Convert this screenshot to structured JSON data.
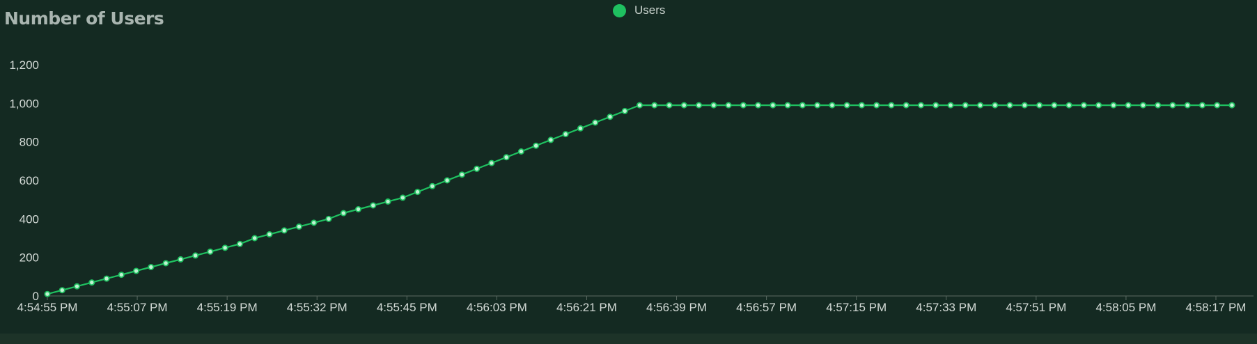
{
  "chart_data": {
    "type": "line",
    "title": "Number of Users",
    "xlabel": "",
    "ylabel": "",
    "legend": {
      "position": "top-center",
      "entries": [
        "Users"
      ]
    },
    "grid": false,
    "ylim": [
      0,
      1200
    ],
    "y_ticks": [
      0,
      200,
      400,
      600,
      800,
      1000,
      1200
    ],
    "y_tick_labels": [
      "0",
      "200",
      "400",
      "600",
      "800",
      "1,000",
      "1,200"
    ],
    "x_tick_labels": [
      "4:54:55 PM",
      "4:55:07 PM",
      "4:55:19 PM",
      "4:55:32 PM",
      "4:55:45 PM",
      "4:56:03 PM",
      "4:56:21 PM",
      "4:56:39 PM",
      "4:56:57 PM",
      "4:57:15 PM",
      "4:57:33 PM",
      "4:57:51 PM",
      "4:58:05 PM",
      "4:58:17 PM"
    ],
    "series": [
      {
        "name": "Users",
        "color": "#1fc060",
        "values": [
          10,
          30,
          50,
          70,
          90,
          110,
          130,
          150,
          170,
          190,
          210,
          230,
          250,
          270,
          300,
          320,
          340,
          360,
          380,
          400,
          430,
          450,
          470,
          490,
          510,
          540,
          570,
          600,
          630,
          660,
          690,
          720,
          750,
          780,
          810,
          840,
          870,
          900,
          930,
          960,
          990,
          990,
          990,
          990,
          990,
          990,
          990,
          990,
          990,
          990,
          990,
          990,
          990,
          990,
          990,
          990,
          990,
          990,
          990,
          990,
          990,
          990,
          990,
          990,
          990,
          990,
          990,
          990,
          990,
          990,
          990,
          990,
          990,
          990,
          990,
          990,
          990,
          990,
          990,
          990,
          990
        ]
      }
    ]
  }
}
